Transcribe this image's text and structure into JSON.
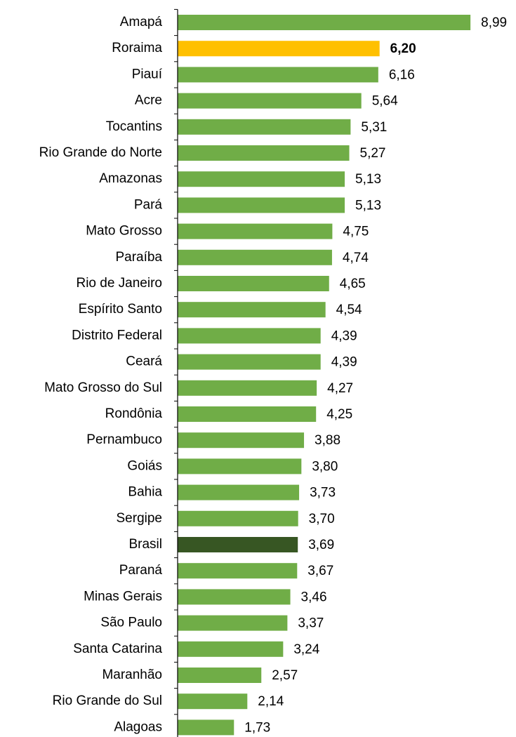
{
  "chart_data": {
    "type": "barh",
    "categories": [
      "Amapá",
      "Roraima",
      "Piauí",
      "Acre",
      "Tocantins",
      "Rio Grande do Norte",
      "Amazonas",
      "Pará",
      "Mato Grosso",
      "Paraíba",
      "Rio de Janeiro",
      "Espírito Santo",
      "Distrito Federal",
      "Ceará",
      "Mato Grosso do Sul",
      "Rondônia",
      "Pernambuco",
      "Goiás",
      "Bahia",
      "Sergipe",
      "Brasil",
      "Paraná",
      "Minas Gerais",
      "São Paulo",
      "Santa Catarina",
      "Maranhão",
      "Rio Grande do Sul",
      "Alagoas"
    ],
    "values": [
      8.99,
      6.2,
      6.16,
      5.64,
      5.31,
      5.27,
      5.13,
      5.13,
      4.75,
      4.74,
      4.65,
      4.54,
      4.39,
      4.39,
      4.27,
      4.25,
      3.88,
      3.8,
      3.73,
      3.7,
      3.69,
      3.67,
      3.46,
      3.37,
      3.24,
      2.57,
      2.14,
      1.73
    ],
    "value_labels": [
      "8,99",
      "6,20",
      "6,16",
      "5,64",
      "5,31",
      "5,27",
      "5,13",
      "5,13",
      "4,75",
      "4,74",
      "4,65",
      "4,54",
      "4,39",
      "4,39",
      "4,27",
      "4,25",
      "3,88",
      "3,80",
      "3,73",
      "3,70",
      "3,69",
      "3,67",
      "3,46",
      "3,37",
      "3,24",
      "2,57",
      "2,14",
      "1,73"
    ],
    "colors": [
      "#70ad47",
      "#ffc000",
      "#70ad47",
      "#70ad47",
      "#70ad47",
      "#70ad47",
      "#70ad47",
      "#70ad47",
      "#70ad47",
      "#70ad47",
      "#70ad47",
      "#70ad47",
      "#70ad47",
      "#70ad47",
      "#70ad47",
      "#70ad47",
      "#70ad47",
      "#70ad47",
      "#70ad47",
      "#70ad47",
      "#375623",
      "#70ad47",
      "#70ad47",
      "#70ad47",
      "#70ad47",
      "#70ad47",
      "#70ad47",
      "#70ad47"
    ],
    "bold_indices": [
      1
    ],
    "xlim": [
      0,
      10
    ]
  }
}
